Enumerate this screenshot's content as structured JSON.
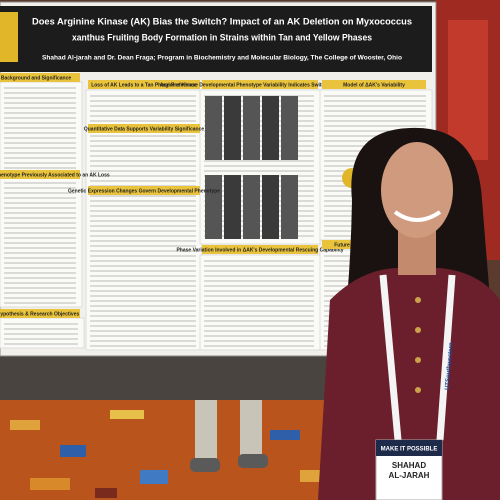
{
  "poster": {
    "title_lines": [
      "Does Arginine Kinase (AK) Bias the Switch? Impact of an AK Deletion on Myxococcus",
      "xanthus Fruiting Body Formation in Strains within Tan and Yellow Phases"
    ],
    "authors": "Shahad Al-jarah and Dr. Dean Fraga; Program in Biochemistry and Molecular Biology, The College of Wooster, Ohio",
    "sections": [
      "Background and Significance",
      "Loss of AK Leads to a Tan Phase Preference",
      "Arginine Kinase Developmental Phenotype Variability Indicates Switch-like Behavior",
      "Model of ΔAK's Variability",
      "Quantitative Data Supports Variability Significance",
      "Variation in Phenotype Previously Associated to an AK Loss",
      "Genetic Expression Changes Govern Developmental Phenotype",
      "Phase Variation Involved in ΔAK's Developmental Rescuing Capability",
      "Hypothesis & Research Objectives",
      "Future"
    ]
  },
  "badge": {
    "name_lines": [
      "SHAHAD",
      "AL-JARAH"
    ],
    "tagline": "MAKE IT POSSIBLE",
    "lanyard": "UTSouthwestern"
  }
}
